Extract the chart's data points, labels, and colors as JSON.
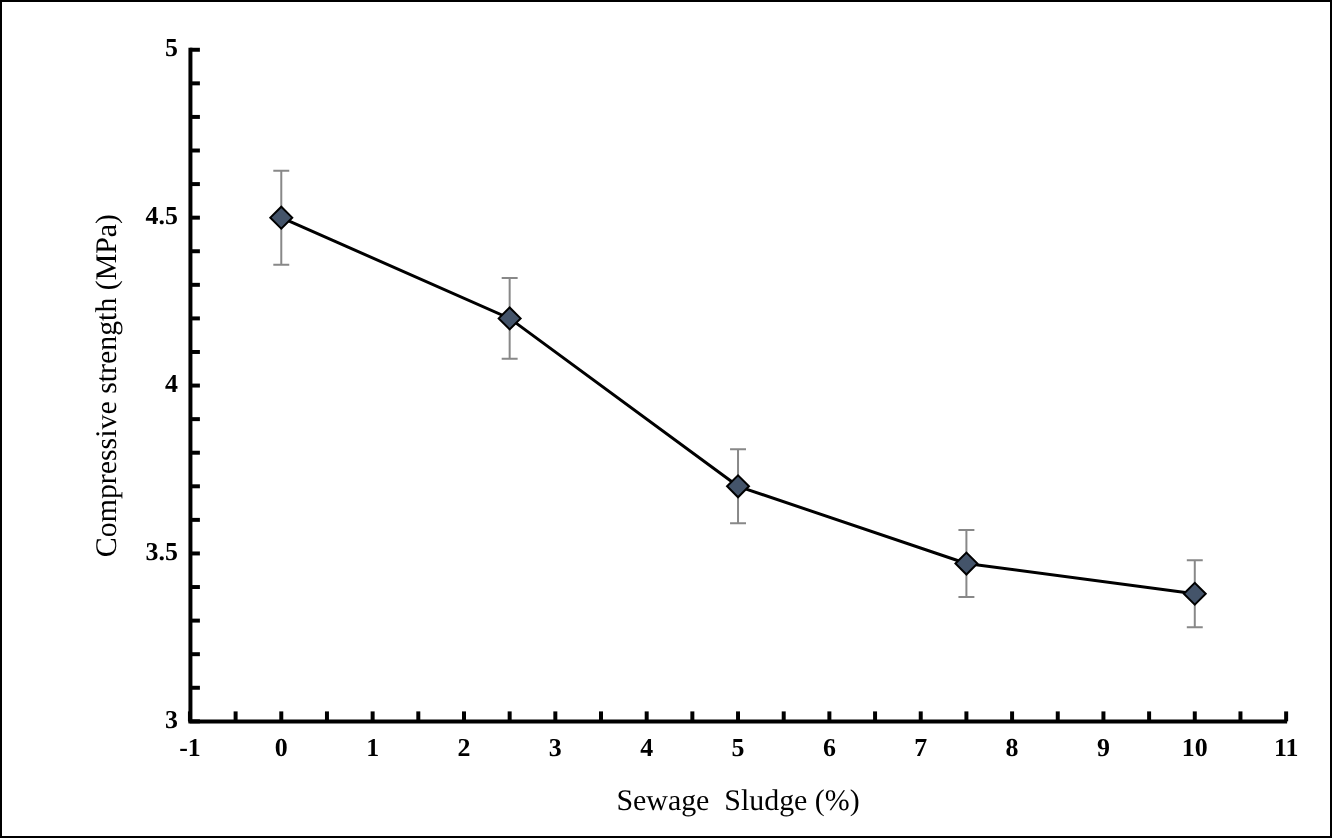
{
  "chart_data": {
    "type": "line",
    "xlabel": "Sewage  Sludge (%)",
    "ylabel": "Compressive strength (MPa)",
    "x": [
      0,
      2.5,
      5,
      7.5,
      10
    ],
    "series": [
      {
        "color": "#44546a",
        "values": [
          4.5,
          4.2,
          3.7,
          3.47,
          3.38
        ],
        "errors": [
          0.14,
          0.12,
          0.11,
          0.1,
          0.1
        ]
      }
    ],
    "xlim": [
      -1,
      11
    ],
    "xticks": [
      -1,
      {
        "value": -0.5,
        "label": null
      },
      0,
      {
        "value": 0.5,
        "label": null
      },
      1,
      {
        "value": 1.5,
        "label": null
      },
      2,
      {
        "value": 2.5,
        "label": null
      },
      3,
      {
        "value": 3.5,
        "label": null
      },
      4,
      {
        "value": 4.5,
        "label": null
      },
      5,
      {
        "value": 5.5,
        "label": null
      },
      6,
      {
        "value": 6.5,
        "label": null
      },
      7,
      {
        "value": 7.5,
        "label": null
      },
      8,
      {
        "value": 8.5,
        "label": null
      },
      9,
      {
        "value": 9.5,
        "label": null
      },
      10,
      {
        "value": 10.5,
        "label": null
      },
      11
    ],
    "ylim": [
      3,
      5
    ],
    "yticks": [
      3,
      {
        "value": 3.1,
        "label": null
      },
      {
        "value": 3.2,
        "label": null
      },
      {
        "value": 3.3,
        "label": null
      },
      {
        "value": 3.4,
        "label": null
      },
      3.5,
      {
        "value": 3.6,
        "label": null
      },
      {
        "value": 3.7,
        "label": null
      },
      {
        "value": 3.8,
        "label": null
      },
      {
        "value": 3.9,
        "label": null
      },
      4,
      {
        "value": 4.1,
        "label": null
      },
      {
        "value": 4.2,
        "label": null
      },
      {
        "value": 4.3,
        "label": null
      },
      {
        "value": 4.4,
        "label": null
      },
      4.5,
      {
        "value": 4.6,
        "label": null
      },
      {
        "value": 4.7,
        "label": null
      },
      {
        "value": 4.8,
        "label": null
      },
      {
        "value": 4.9,
        "label": null
      },
      5
    ],
    "grid": false,
    "legend": false,
    "marker": "diamond",
    "line_style": "solid"
  }
}
